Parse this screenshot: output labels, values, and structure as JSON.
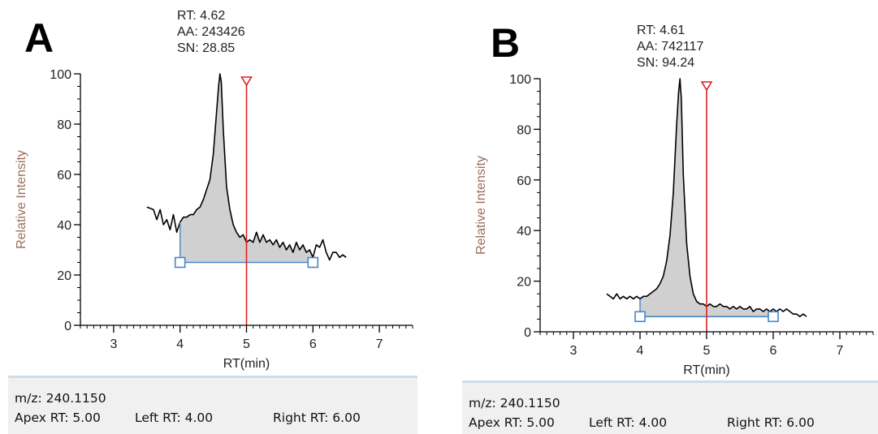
{
  "panels": [
    {
      "id": "a",
      "label": "A",
      "annotation": {
        "rt": "RT: 4.62",
        "aa": "AA: 243426",
        "sn": "SN: 28.85"
      },
      "footer": {
        "mz": "m/z: 240.1150",
        "apex_rt": "Apex RT:  5.00",
        "left_rt": "Left RT:  4.00",
        "right_rt": "Right RT:  6.00"
      }
    },
    {
      "id": "b",
      "label": "B",
      "annotation": {
        "rt": "RT: 4.61",
        "aa": "AA: 742117",
        "sn": "SN: 94.24"
      },
      "footer": {
        "mz": "m/z: 240.1150",
        "apex_rt": "Apex RT:  5.00",
        "left_rt": "Left RT:  4.00",
        "right_rt": "Right RT:  6.00"
      }
    }
  ],
  "colors": {
    "trace": "#000000",
    "fill": "#d0d0d0",
    "apex_marker": "#e02020",
    "baseline": "#4a86c8",
    "ylabel": "#9a6e5a",
    "axis": "#000000"
  },
  "chart_data": [
    {
      "type": "line",
      "panel": "A",
      "xlabel": "RT(min)",
      "ylabel": "Relative Intensity",
      "xlim": [
        2.5,
        7.5
      ],
      "ylim": [
        0,
        100
      ],
      "xticks": [
        3,
        4,
        5,
        6,
        7
      ],
      "yticks": [
        0,
        20,
        40,
        60,
        80,
        100
      ],
      "apex_marker_rt": 5.0,
      "baseline": {
        "left_rt": 4.0,
        "right_rt": 6.0,
        "y": 25
      },
      "peak_apex": {
        "rt": 4.62,
        "y": 100
      },
      "x": [
        3.5,
        3.6,
        3.65,
        3.7,
        3.75,
        3.8,
        3.85,
        3.9,
        3.95,
        4.0,
        4.05,
        4.1,
        4.15,
        4.2,
        4.25,
        4.3,
        4.35,
        4.4,
        4.45,
        4.5,
        4.55,
        4.58,
        4.6,
        4.62,
        4.65,
        4.7,
        4.75,
        4.8,
        4.85,
        4.9,
        4.95,
        5.0,
        5.05,
        5.1,
        5.15,
        5.2,
        5.25,
        5.3,
        5.35,
        5.4,
        5.45,
        5.5,
        5.55,
        5.6,
        5.65,
        5.7,
        5.75,
        5.8,
        5.85,
        5.9,
        5.95,
        6.0,
        6.05,
        6.1,
        6.15,
        6.2,
        6.25,
        6.3,
        6.35,
        6.4,
        6.45,
        6.5
      ],
      "y": [
        47,
        46,
        42,
        46,
        40,
        42,
        38,
        44,
        37,
        41,
        43,
        43,
        44,
        44,
        46,
        47,
        50,
        54,
        58,
        68,
        85,
        95,
        100,
        97,
        78,
        55,
        46,
        40,
        37,
        35,
        36,
        33,
        34,
        33,
        37,
        33,
        36,
        33,
        34,
        32,
        34,
        31,
        33,
        30,
        32,
        29,
        33,
        30,
        32,
        29,
        30,
        27,
        32,
        31,
        34,
        29,
        26,
        29,
        29,
        27,
        28,
        27
      ]
    },
    {
      "type": "line",
      "panel": "B",
      "xlabel": "RT(min)",
      "ylabel": "Relative Intensity",
      "xlim": [
        2.5,
        7.5
      ],
      "ylim": [
        0,
        100
      ],
      "xticks": [
        3,
        4,
        5,
        6,
        7
      ],
      "yticks": [
        0,
        20,
        40,
        60,
        80,
        100
      ],
      "apex_marker_rt": 5.0,
      "baseline": {
        "left_rt": 4.0,
        "right_rt": 6.0,
        "y": 6
      },
      "peak_apex": {
        "rt": 4.61,
        "y": 100
      },
      "x": [
        3.5,
        3.55,
        3.6,
        3.65,
        3.7,
        3.75,
        3.8,
        3.85,
        3.9,
        3.95,
        4.0,
        4.05,
        4.1,
        4.15,
        4.2,
        4.25,
        4.3,
        4.35,
        4.4,
        4.45,
        4.5,
        4.55,
        4.58,
        4.6,
        4.62,
        4.65,
        4.7,
        4.75,
        4.8,
        4.85,
        4.9,
        4.95,
        5.0,
        5.05,
        5.1,
        5.15,
        5.2,
        5.25,
        5.3,
        5.35,
        5.4,
        5.45,
        5.5,
        5.55,
        5.6,
        5.65,
        5.7,
        5.75,
        5.8,
        5.85,
        5.9,
        5.95,
        6.0,
        6.05,
        6.1,
        6.15,
        6.2,
        6.25,
        6.3,
        6.35,
        6.4,
        6.45,
        6.5
      ],
      "y": [
        15,
        14,
        13,
        15,
        13,
        14,
        13,
        14,
        13,
        14,
        13,
        14,
        14,
        15,
        16,
        17,
        19,
        22,
        28,
        38,
        55,
        82,
        95,
        100,
        92,
        62,
        35,
        22,
        15,
        12,
        11,
        11,
        10,
        11,
        10,
        10,
        11,
        10,
        10,
        9,
        10,
        9,
        10,
        9,
        9,
        10,
        8,
        9,
        9,
        8,
        9,
        8,
        9,
        8,
        9,
        8,
        9,
        8,
        7,
        7,
        6,
        7,
        6
      ]
    }
  ]
}
